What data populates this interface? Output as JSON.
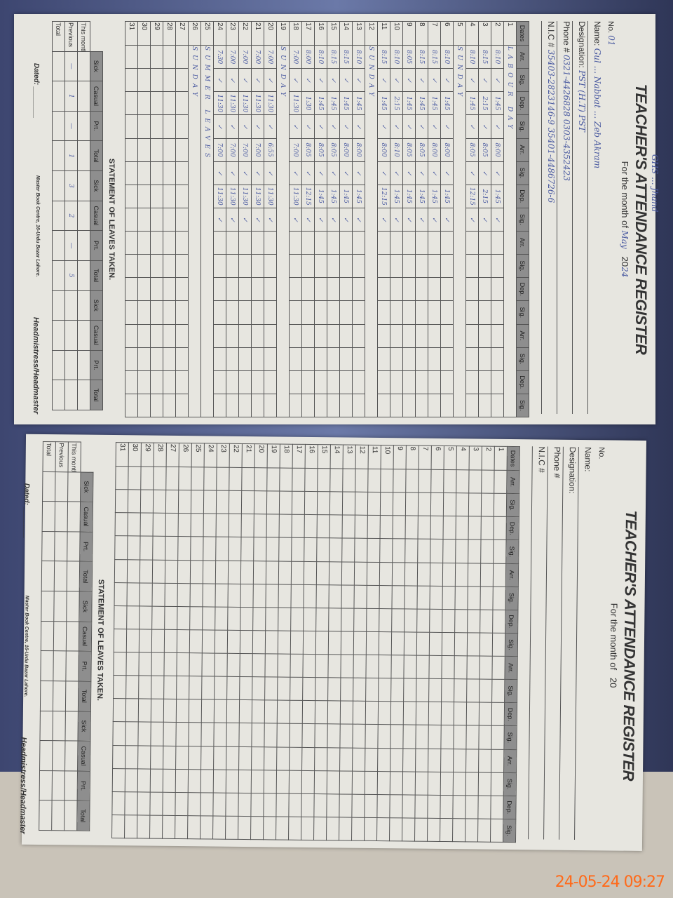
{
  "form": {
    "title": "TEACHER'S ATTENDANCE REGISTER",
    "month_label": "For the month of",
    "no_label": "No.",
    "year_prefix": "20",
    "name_label": "Name:",
    "designation_label": "Designation:",
    "phone_label": "Phone #",
    "nic_label": "N.I.C #",
    "dates_label": "Dates",
    "col_headers": [
      "Arr.",
      "Sig.",
      "Dep.",
      "Sig.",
      "Arr.",
      "Sig.",
      "Dep.",
      "Sig.",
      "Arr.",
      "Sig.",
      "Dep.",
      "Sig.",
      "Arr.",
      "Sig.",
      "Dep.",
      "Sig."
    ],
    "statement_title": "STATEMENT OF LEAVES TAKEN.",
    "leave_headers": [
      "Sick",
      "Casual",
      "Prt.",
      "Total"
    ],
    "leave_rows": [
      "This month",
      "Previous",
      "Total"
    ],
    "dated_label": "Dated:",
    "head_label": "Headmistress/Headmaster",
    "printer": "Master Book Centre, 16-Urdu Bazar Lahore."
  },
  "left_page": {
    "top_note": "GHS ... Jhand",
    "no": "01",
    "month": "May",
    "no2": "02",
    "year": "24",
    "name": "Gul ... Nabbat ... Zeb Akram",
    "designation": "PST (H.T)   PST",
    "phone": "0321-4426828  0303-4352423",
    "nic": "35403-2823146-9  35401-4486726-6",
    "rows": [
      {
        "a1": "LABOUR DAY"
      },
      {
        "a1": "8:10",
        "d1": "1:45",
        "a2": "8:00",
        "d2": "1:45"
      },
      {
        "a1": "8:15",
        "d1": "2:15",
        "a2": "8:05",
        "d2": "2:15"
      },
      {
        "a1": "8:10",
        "d1": "1:45",
        "a2": "8:05",
        "d2": "12:15"
      },
      {
        "a1": "SUNDAY"
      },
      {
        "a1": "8:10",
        "d1": "1:45",
        "a2": "8:00",
        "d2": "1:45"
      },
      {
        "a1": "8:15",
        "d1": "1:45",
        "a2": "8:00",
        "d2": "1:45"
      },
      {
        "a1": "8:15",
        "d1": "1:45",
        "a2": "8:05",
        "d2": "1:45"
      },
      {
        "a1": "8:05",
        "d1": "1:45",
        "a2": "8:05",
        "d2": "1:45"
      },
      {
        "a1": "8:10",
        "d1": "2:15",
        "a2": "8:10",
        "d2": "1:45"
      },
      {
        "a1": "8:15",
        "d1": "1:45",
        "a2": "8:00",
        "d2": "12:15"
      },
      {
        "a1": "SUNDAY"
      },
      {
        "a1": "8:10",
        "d1": "1:45",
        "a2": "8:00",
        "d2": "1:45"
      },
      {
        "a1": "8:15",
        "d1": "1:45",
        "a2": "8:00",
        "d2": "1:45"
      },
      {
        "a1": "8:15",
        "d1": "1:45",
        "a2": "8:05",
        "d2": "1:45"
      },
      {
        "a1": "8:10",
        "d1": "1:45",
        "a2": "8:05",
        "d2": "1:45"
      },
      {
        "a1": "8:00",
        "d1": "1:30",
        "a2": "8:05",
        "d2": "12:15"
      },
      {
        "a1": "7:00",
        "d1": "11:30",
        "a2": "7:00",
        "d2": "11:30"
      },
      {
        "a1": "SUNDAY"
      },
      {
        "a1": "7:00",
        "d1": "11:30",
        "a2": "6:55",
        "d2": "11:30"
      },
      {
        "a1": "7:00",
        "d1": "11:30",
        "a2": "7:00",
        "d2": "11:30"
      },
      {
        "a1": "7:00",
        "d1": "11:30",
        "a2": "7:00",
        "d2": "11:30"
      },
      {
        "a1": "7:00",
        "d1": "11:30",
        "a2": "7:00",
        "d2": "11:30"
      },
      {
        "a1": "7:30",
        "d1": "11:30",
        "a2": "7:00",
        "d2": "11:30"
      },
      {
        "a1": "SUMMER LEAVES"
      },
      {
        "a1": "SUNDAY"
      },
      {},
      {},
      {},
      {},
      {}
    ],
    "leaves_this_month": [
      "",
      "",
      "",
      ""
    ],
    "leaves_previous": [
      "—",
      "1",
      "—",
      "1"
    ],
    "leaves_previous2": [
      "3",
      "2",
      "—",
      "5"
    ]
  },
  "right_page": {
    "rows": 31
  },
  "timestamp": "24-05-24  09:27"
}
